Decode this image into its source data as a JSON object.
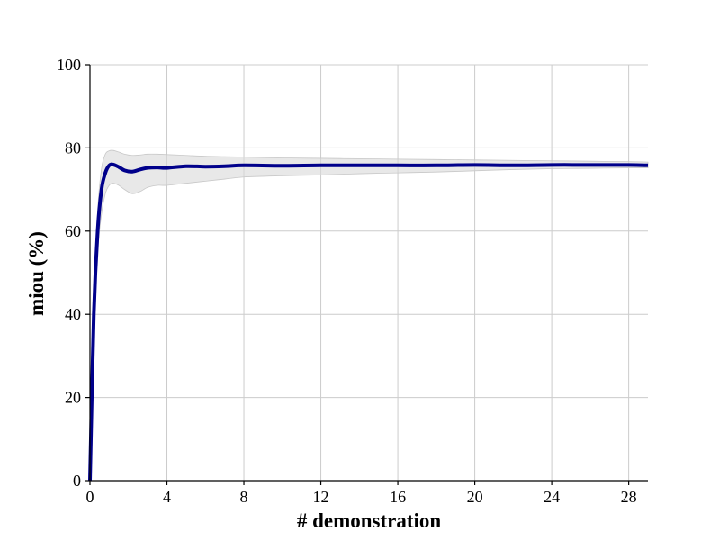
{
  "chart_data": {
    "type": "line",
    "title": "",
    "xlabel": "# demonstration",
    "ylabel": "miou (%)",
    "xlim": [
      0,
      29
    ],
    "ylim": [
      0,
      100
    ],
    "xticks": [
      0,
      4,
      8,
      12,
      16,
      20,
      24,
      28
    ],
    "yticks": [
      0,
      20,
      40,
      60,
      80,
      100
    ],
    "grid": true,
    "colors": {
      "line": "#00008b",
      "band": "#d9d9d9"
    },
    "series": [
      {
        "x": [
          0,
          0.2,
          0.4,
          0.6,
          0.8,
          1.0,
          1.2,
          1.5,
          1.8,
          2.2,
          2.6,
          3,
          3.5,
          4,
          5,
          6,
          7,
          8,
          10,
          12,
          14,
          16,
          18,
          20,
          22,
          24,
          26,
          28,
          29
        ],
        "y": [
          0,
          40,
          60,
          70,
          74,
          75.8,
          76,
          75.4,
          74.6,
          74.3,
          74.8,
          75.2,
          75.3,
          75.2,
          75.6,
          75.5,
          75.6,
          75.8,
          75.7,
          75.8,
          75.8,
          75.8,
          75.8,
          75.9,
          75.8,
          75.9,
          75.9,
          75.9,
          75.8
        ],
        "lower": [
          0,
          36,
          55,
          64,
          69,
          71,
          71.5,
          71,
          70,
          69,
          69.5,
          70.5,
          71,
          71,
          71.5,
          72,
          72.5,
          73,
          73.3,
          73.5,
          73.8,
          74,
          74.2,
          74.5,
          74.8,
          75,
          75.1,
          75.2,
          75.2
        ],
        "upper": [
          0,
          44,
          65,
          75,
          78.5,
          79.3,
          79.4,
          79,
          78.5,
          78.2,
          78.3,
          78.5,
          78.5,
          78.4,
          78.2,
          78,
          77.9,
          77.8,
          77.6,
          77.5,
          77.4,
          77.3,
          77.2,
          77.1,
          77,
          76.9,
          76.8,
          76.7,
          76.6
        ]
      }
    ]
  }
}
